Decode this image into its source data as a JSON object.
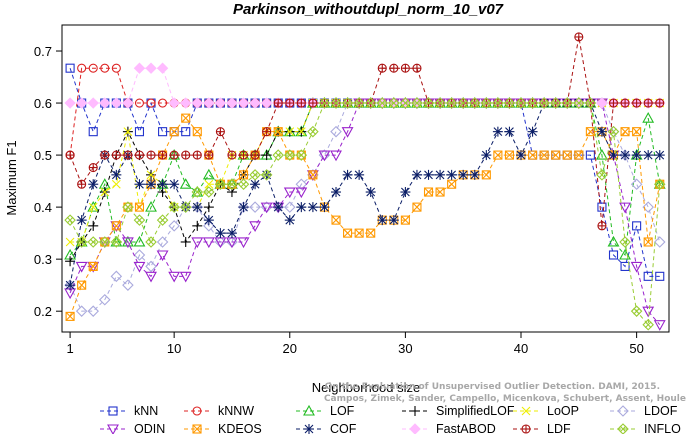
{
  "chart_data": {
    "type": "line",
    "title": "Parkinson_withoutdupl_norm_10_v07",
    "xlabel": "Neighborhood size",
    "ylabel": "Maximum F1",
    "xlim": [
      0.3,
      52.8
    ],
    "ylim": [
      0.16,
      0.75
    ],
    "xticks": [
      1,
      10,
      20,
      30,
      40,
      50
    ],
    "yticks": [
      0.2,
      0.3,
      0.4,
      0.5,
      0.6,
      0.7
    ],
    "grid": false,
    "legend_position": "bottom",
    "credit": [
      "Campos, Zimek, Sander, Campello, Micenkova, Schubert, Assent, Houle",
      "On the Evaluation of Unsupervised Outlier Detection. DAMI, 2015."
    ],
    "series": [
      {
        "name": "kNN",
        "color": "#2233cc",
        "marker": "square",
        "values": [
          0.667,
          0.6,
          0.545,
          0.6,
          0.6,
          0.6,
          0.545,
          0.6,
          0.545,
          0.545,
          0.545,
          0.6,
          0.6,
          0.6,
          0.6,
          0.6,
          0.6,
          0.6,
          0.6,
          0.6,
          0.6,
          0.6,
          0.6,
          0.6,
          0.6,
          0.6,
          0.6,
          0.6,
          0.6,
          0.6,
          0.6,
          0.6,
          0.6,
          0.6,
          0.6,
          0.6,
          0.6,
          0.6,
          0.6,
          0.6,
          0.5,
          0.5,
          0.5,
          0.5,
          0.5,
          0.5,
          0.4,
          0.308,
          0.286,
          0.364,
          0.267,
          0.267
        ]
      },
      {
        "name": "kNNW",
        "color": "#dd2222",
        "marker": "circle",
        "values": [
          0.5,
          0.667,
          0.667,
          0.667,
          0.667,
          0.6,
          0.6,
          0.6,
          0.6,
          0.6,
          0.6,
          0.6,
          0.6,
          0.6,
          0.6,
          0.6,
          0.6,
          0.6,
          0.6,
          0.6,
          0.6,
          0.6,
          0.6,
          0.6,
          0.6,
          0.6,
          0.6,
          0.6,
          0.6,
          0.6,
          0.6,
          0.6,
          0.6,
          0.6,
          0.6,
          0.6,
          0.6,
          0.6,
          0.6,
          0.6,
          0.6,
          0.6,
          0.6,
          0.6,
          0.6,
          0.6,
          0.6,
          0.6,
          0.6,
          0.6,
          0.6,
          0.6
        ]
      },
      {
        "name": "LOF",
        "color": "#22bb22",
        "marker": "triangle-up",
        "values": [
          0.308,
          0.333,
          0.4,
          0.444,
          0.333,
          0.333,
          0.333,
          0.4,
          0.444,
          0.5,
          0.444,
          0.429,
          0.462,
          0.444,
          0.444,
          0.5,
          0.5,
          0.5,
          0.545,
          0.545,
          0.545,
          0.6,
          0.6,
          0.6,
          0.6,
          0.6,
          0.6,
          0.6,
          0.6,
          0.6,
          0.6,
          0.6,
          0.6,
          0.6,
          0.6,
          0.6,
          0.6,
          0.6,
          0.6,
          0.6,
          0.6,
          0.6,
          0.6,
          0.6,
          0.6,
          0.6,
          0.5,
          0.333,
          0.308,
          0.5,
          0.571,
          0.444
        ]
      },
      {
        "name": "SimplifiedLOF",
        "color": "#000000",
        "marker": "plus",
        "values": [
          0.296,
          0.333,
          0.364,
          0.429,
          0.5,
          0.545,
          0.5,
          0.462,
          0.429,
          0.4,
          0.333,
          0.364,
          0.4,
          0.444,
          0.429,
          0.462,
          0.5,
          0.5,
          0.545,
          0.545,
          0.545,
          0.6,
          0.6,
          0.6,
          0.6,
          0.6,
          0.6,
          0.6,
          0.6,
          0.6,
          0.6,
          0.6,
          0.6,
          0.6,
          0.6,
          0.6,
          0.6,
          0.6,
          0.6,
          0.6,
          0.6,
          0.6,
          0.6,
          0.6,
          0.6,
          0.6,
          0.6,
          0.6,
          0.6,
          0.6,
          0.6,
          0.6
        ]
      },
      {
        "name": "LoOP",
        "color": "#eeee00",
        "marker": "x",
        "values": [
          0.333,
          0.333,
          0.4,
          0.429,
          0.444,
          0.545,
          0.4,
          0.462,
          0.444,
          0.4,
          0.4,
          0.4,
          0.444,
          0.444,
          0.5,
          0.5,
          0.5,
          0.545,
          0.545,
          0.545,
          0.545,
          0.6,
          0.6,
          0.6,
          0.6,
          0.6,
          0.6,
          0.6,
          0.6,
          0.6,
          0.6,
          0.6,
          0.6,
          0.6,
          0.6,
          0.6,
          0.6,
          0.6,
          0.6,
          0.6,
          0.6,
          0.6,
          0.6,
          0.6,
          0.6,
          0.6,
          0.6,
          0.6,
          0.6,
          0.6,
          0.6,
          0.6
        ]
      },
      {
        "name": "LDOF",
        "color": "#aaaadd",
        "marker": "diamond",
        "values": [
          0.25,
          0.2,
          0.2,
          0.222,
          0.267,
          0.25,
          0.308,
          0.286,
          0.333,
          0.364,
          0.4,
          0.4,
          0.364,
          0.333,
          0.333,
          0.4,
          0.4,
          0.4,
          0.4,
          0.4,
          0.444,
          0.462,
          0.5,
          0.545,
          0.6,
          0.6,
          0.6,
          0.6,
          0.6,
          0.6,
          0.6,
          0.6,
          0.6,
          0.6,
          0.6,
          0.6,
          0.6,
          0.6,
          0.6,
          0.6,
          0.6,
          0.6,
          0.6,
          0.6,
          0.6,
          0.6,
          0.6,
          0.545,
          0.5,
          0.444,
          0.4,
          0.333
        ]
      },
      {
        "name": "ODIN",
        "color": "#9922cc",
        "marker": "triangle-down",
        "values": [
          0.235,
          0.286,
          0.286,
          0.333,
          0.364,
          0.333,
          0.286,
          0.267,
          0.308,
          0.267,
          0.267,
          0.333,
          0.333,
          0.333,
          0.333,
          0.333,
          0.364,
          0.4,
          0.4,
          0.429,
          0.429,
          0.462,
          0.5,
          0.5,
          0.545,
          0.6,
          0.6,
          0.6,
          0.6,
          0.6,
          0.6,
          0.6,
          0.6,
          0.6,
          0.6,
          0.6,
          0.6,
          0.6,
          0.6,
          0.6,
          0.6,
          0.6,
          0.6,
          0.6,
          0.6,
          0.6,
          0.6,
          0.5,
          0.4,
          0.286,
          0.2,
          0.174
        ]
      },
      {
        "name": "KDEOS",
        "color": "#ff9900",
        "marker": "square-x",
        "values": [
          0.19,
          0.25,
          0.286,
          0.333,
          0.364,
          0.4,
          0.4,
          0.444,
          0.5,
          0.545,
          0.571,
          0.545,
          0.5,
          0.444,
          0.444,
          0.462,
          0.5,
          0.545,
          0.545,
          0.5,
          0.5,
          0.462,
          0.4,
          0.375,
          0.35,
          0.35,
          0.35,
          0.375,
          0.375,
          0.375,
          0.4,
          0.429,
          0.429,
          0.444,
          0.462,
          0.462,
          0.462,
          0.5,
          0.5,
          0.5,
          0.5,
          0.5,
          0.5,
          0.5,
          0.5,
          0.545,
          0.545,
          0.5,
          0.545,
          0.545,
          0.333,
          0.444
        ]
      },
      {
        "name": "COF",
        "color": "#0a1d66",
        "marker": "asterisk",
        "values": [
          0.25,
          0.375,
          0.444,
          0.5,
          0.462,
          0.5,
          0.444,
          0.444,
          0.444,
          0.444,
          0.4,
          0.4,
          0.375,
          0.35,
          0.35,
          0.4,
          0.444,
          0.462,
          0.4,
          0.375,
          0.4,
          0.4,
          0.4,
          0.429,
          0.462,
          0.462,
          0.429,
          0.375,
          0.375,
          0.429,
          0.462,
          0.462,
          0.462,
          0.462,
          0.462,
          0.462,
          0.5,
          0.545,
          0.545,
          0.5,
          0.545,
          0.6,
          0.6,
          0.6,
          0.6,
          0.6,
          0.545,
          0.5,
          0.5,
          0.5,
          0.5,
          0.5
        ]
      },
      {
        "name": "FastABOD",
        "color": "#ffbbff",
        "marker": "diamond-fill",
        "values": [
          0.6,
          0.6,
          0.6,
          0.6,
          0.6,
          0.6,
          0.667,
          0.667,
          0.667,
          0.6,
          0.6,
          0.6,
          0.6,
          0.6,
          0.6,
          0.6,
          0.6,
          0.6,
          0.6,
          0.6,
          0.6,
          0.6,
          0.6,
          0.6,
          0.6,
          0.6,
          0.6,
          0.6,
          0.6,
          0.6,
          0.6,
          0.6,
          0.6,
          0.6,
          0.6,
          0.6,
          0.6,
          0.6,
          0.6,
          0.6,
          0.6,
          0.6,
          0.6,
          0.6,
          0.6,
          0.6,
          0.6,
          0.6,
          0.6,
          0.6,
          0.6,
          0.6
        ]
      },
      {
        "name": "LDF",
        "color": "#aa1111",
        "marker": "circle-plus",
        "values": [
          0.5,
          0.444,
          0.476,
          0.5,
          0.5,
          0.5,
          0.5,
          0.5,
          0.5,
          0.5,
          0.5,
          0.5,
          0.5,
          0.545,
          0.5,
          0.5,
          0.5,
          0.545,
          0.6,
          0.6,
          0.6,
          0.6,
          0.6,
          0.6,
          0.6,
          0.6,
          0.6,
          0.667,
          0.667,
          0.667,
          0.667,
          0.6,
          0.6,
          0.6,
          0.6,
          0.6,
          0.6,
          0.6,
          0.6,
          0.6,
          0.6,
          0.6,
          0.6,
          0.6,
          0.727,
          0.6,
          0.364,
          0.6,
          0.6,
          0.6,
          0.6,
          0.6
        ]
      },
      {
        "name": "INFLO",
        "color": "#99cc33",
        "marker": "diamond-x",
        "values": [
          0.375,
          0.333,
          0.333,
          0.333,
          0.333,
          0.4,
          0.375,
          0.333,
          0.375,
          0.4,
          0.4,
          0.429,
          0.429,
          0.444,
          0.444,
          0.444,
          0.462,
          0.462,
          0.5,
          0.5,
          0.5,
          0.545,
          0.6,
          0.6,
          0.6,
          0.6,
          0.6,
          0.6,
          0.6,
          0.6,
          0.6,
          0.6,
          0.6,
          0.6,
          0.6,
          0.6,
          0.6,
          0.6,
          0.6,
          0.6,
          0.6,
          0.6,
          0.6,
          0.6,
          0.6,
          0.6,
          0.462,
          0.545,
          0.333,
          0.2,
          0.174,
          0.444
        ]
      }
    ]
  }
}
